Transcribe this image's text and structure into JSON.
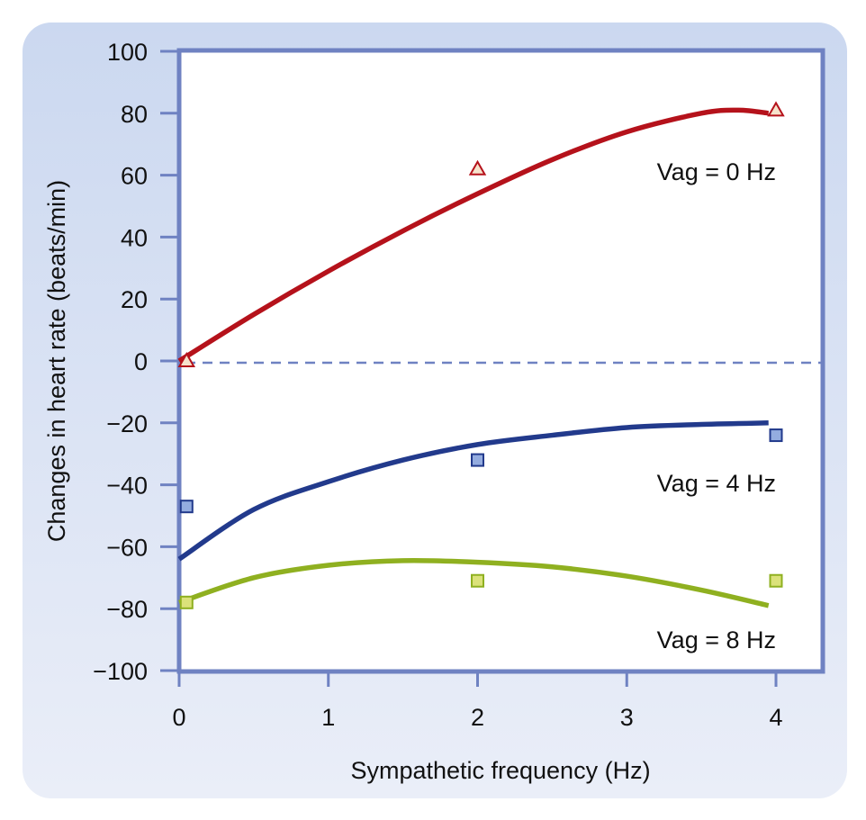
{
  "chart_data": {
    "type": "line",
    "title": "",
    "xlabel": "Sympathetic frequency (Hz)",
    "ylabel": "Changes in heart rate (beats/min)",
    "xlim": [
      0,
      4
    ],
    "ylim": [
      -100,
      100
    ],
    "xticks": [
      0,
      1,
      2,
      3,
      4
    ],
    "xtick_labels": [
      "0",
      "1",
      "2",
      "3",
      "4"
    ],
    "yticks": [
      100,
      80,
      60,
      40,
      20,
      0,
      -20,
      -40,
      -60,
      -80,
      -100
    ],
    "ytick_labels": [
      "100",
      "80",
      "60",
      "40",
      "20",
      "0",
      "−20",
      "−40",
      "−60",
      "−80",
      "−100"
    ],
    "reference_line": {
      "y": 0,
      "style": "dashed"
    },
    "grid": false,
    "series": [
      {
        "name": "Vag = 0 Hz",
        "marker": "triangle",
        "color": "#b5121b",
        "marker_fill": "#f6e3cc",
        "points": {
          "x": [
            0.05,
            2,
            4
          ],
          "y": [
            0,
            62,
            81
          ]
        },
        "curve": {
          "x": [
            0,
            0.5,
            1,
            1.5,
            2,
            2.5,
            3,
            3.5,
            3.75,
            3.95
          ],
          "y": [
            0,
            15,
            29,
            42,
            54,
            65,
            74,
            80,
            81,
            80
          ]
        }
      },
      {
        "name": "Vag = 4 Hz",
        "marker": "square",
        "color": "#223a8c",
        "marker_fill": "#94acdf",
        "points": {
          "x": [
            0.05,
            2,
            4
          ],
          "y": [
            -47,
            -32,
            -24
          ]
        },
        "curve": {
          "x": [
            0,
            0.5,
            1,
            1.5,
            2,
            2.5,
            3,
            3.5,
            3.95
          ],
          "y": [
            -64,
            -48,
            -39,
            -32,
            -27,
            -24,
            -21.5,
            -20.5,
            -20
          ]
        }
      },
      {
        "name": "Vag = 8 Hz",
        "marker": "square",
        "color": "#8fb020",
        "marker_fill": "#dbe27a",
        "points": {
          "x": [
            0.05,
            2,
            4
          ],
          "y": [
            -78,
            -71,
            -71
          ]
        },
        "curve": {
          "x": [
            0,
            0.5,
            1,
            1.5,
            2,
            2.5,
            3,
            3.5,
            3.95
          ],
          "y": [
            -78,
            -70,
            -66,
            -64.5,
            -65,
            -66.5,
            -69.5,
            -74,
            -79
          ]
        }
      }
    ],
    "annotations": [
      {
        "text": "Vag = 0 Hz",
        "series": 0
      },
      {
        "text": "Vag = 4 Hz",
        "series": 1
      },
      {
        "text": "Vag = 8 Hz",
        "series": 2
      }
    ],
    "colors": {
      "panel_top": "#cdd9f0",
      "panel_bottom": "#e9edf8",
      "axis": "#6f82c2",
      "plot_bg": "#ffffff",
      "text": "#111111"
    }
  }
}
